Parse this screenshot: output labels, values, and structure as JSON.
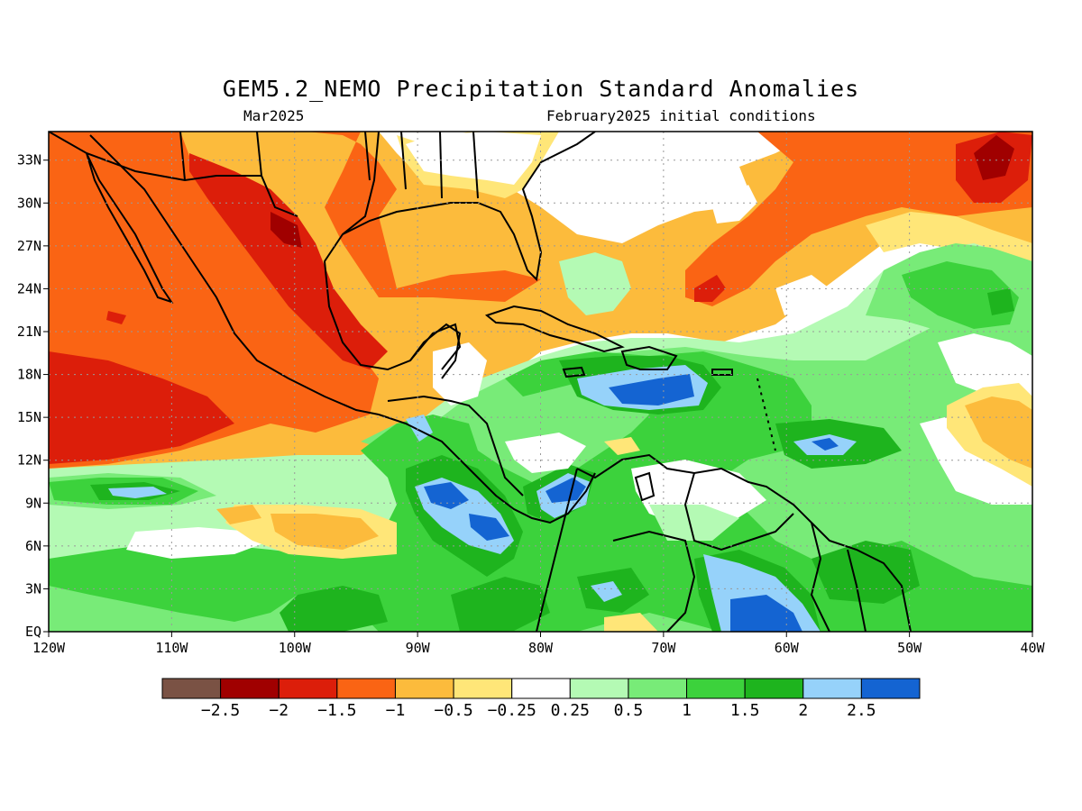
{
  "title": "GEM5.2_NEMO Precipitation Standard Anomalies",
  "subtitle_left": "Mar2025",
  "subtitle_right": "February2025 initial conditions",
  "map": {
    "lon_range": [
      -120,
      -40
    ],
    "lat_range": [
      0,
      35
    ],
    "x_ticks": [
      "120W",
      "110W",
      "100W",
      "90W",
      "80W",
      "70W",
      "60W",
      "50W",
      "40W"
    ],
    "y_ticks": [
      "EQ",
      "3N",
      "6N",
      "9N",
      "12N",
      "15N",
      "18N",
      "21N",
      "24N",
      "27N",
      "30N",
      "33N"
    ],
    "grid": "dotted"
  },
  "colorbar": {
    "colors": [
      "#7a5244",
      "#a00000",
      "#dc1e0a",
      "#fa6414",
      "#fcbb3c",
      "#ffe678",
      "#ffffff",
      "#b4fab4",
      "#78eb78",
      "#3cd23c",
      "#1eb41e",
      "#96d2fa",
      "#1464d2"
    ],
    "labels": [
      "-2.5",
      "-2",
      "-1.5",
      "-1",
      "-0.5",
      "-0.25",
      "0.25",
      "0.5",
      "1",
      "1.5",
      "2",
      "2.5"
    ]
  }
}
